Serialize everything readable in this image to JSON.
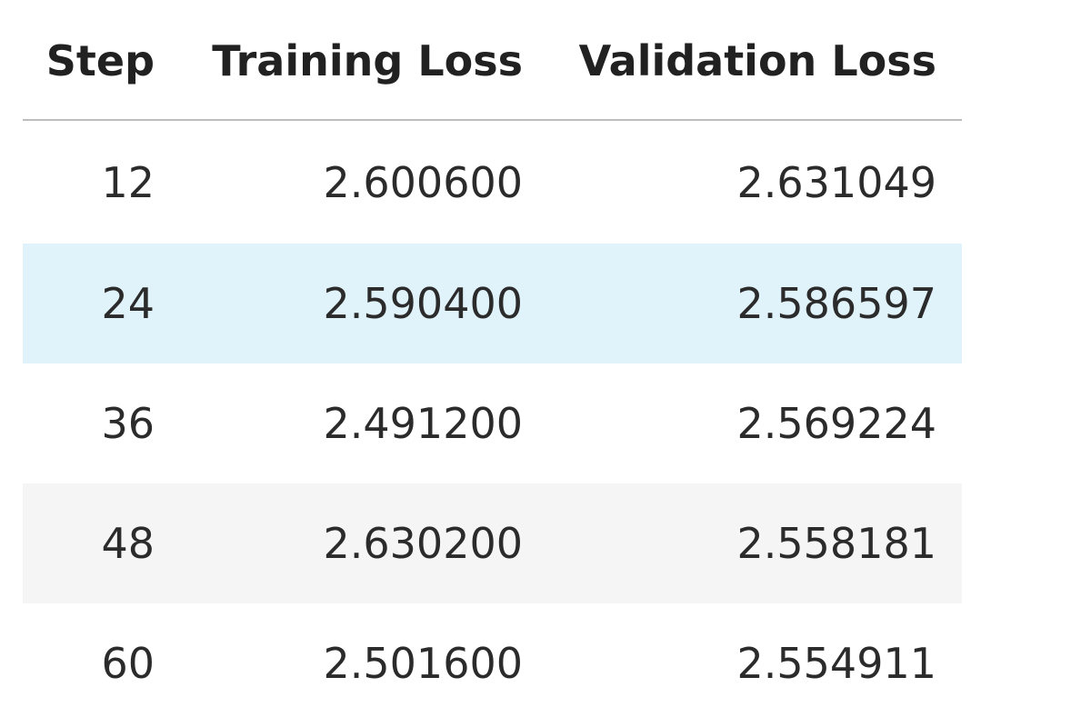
{
  "table": {
    "headers": [
      "Step",
      "Training Loss",
      "Validation Loss"
    ],
    "rows": [
      {
        "step": "12",
        "training_loss": "2.600600",
        "validation_loss": "2.631049"
      },
      {
        "step": "24",
        "training_loss": "2.590400",
        "validation_loss": "2.586597"
      },
      {
        "step": "36",
        "training_loss": "2.491200",
        "validation_loss": "2.569224"
      },
      {
        "step": "48",
        "training_loss": "2.630200",
        "validation_loss": "2.558181"
      },
      {
        "step": "60",
        "training_loss": "2.501600",
        "validation_loss": "2.554911"
      }
    ],
    "colors": {
      "highlight_row": "#e0f2fa",
      "striped_row": "#f5f5f5",
      "header_rule": "#bdbdbd"
    }
  }
}
